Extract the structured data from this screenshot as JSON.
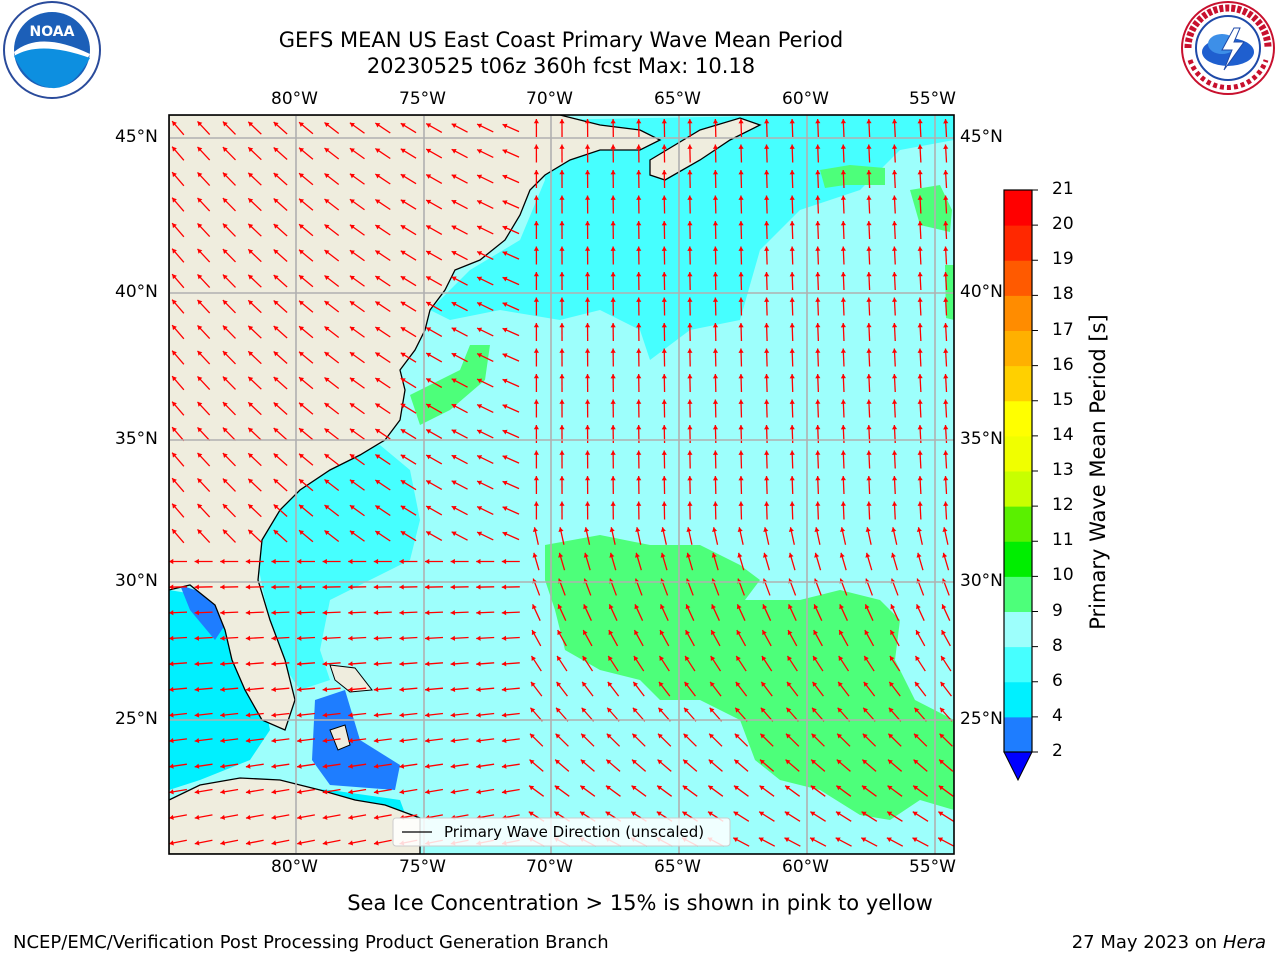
{
  "header": {
    "title_line1": "GEFS MEAN US East Coast Primary Wave Mean Period",
    "title_line2": "20230525 t06z 360h fcst   Max: 10.18"
  },
  "logos": {
    "left": {
      "icon": "noaa-logo-icon",
      "text": "NOAA"
    },
    "right": {
      "icon": "nws-logo-icon",
      "ring_text": "NATIONAL WEATHER SERVICE"
    }
  },
  "map": {
    "lon_labels": [
      "80°W",
      "75°W",
      "70°W",
      "65°W",
      "60°W",
      "55°W"
    ],
    "lat_labels": [
      "45°N",
      "40°N",
      "35°N",
      "30°N",
      "25°N"
    ],
    "legend_label": "Primary Wave Direction (unscaled)",
    "land_color": "#efedde",
    "arrow_color": "#ff0000",
    "gridline_color": "#b0b0b0"
  },
  "colorbar": {
    "title": "Primary Wave Mean Period [s]",
    "levels": [
      "2",
      "4",
      "6",
      "8",
      "9",
      "10",
      "11",
      "12",
      "13",
      "14",
      "15",
      "16",
      "17",
      "18",
      "19",
      "20",
      "21"
    ],
    "colors": [
      "#0000ff",
      "#1e7dff",
      "#00f0ff",
      "#46ffff",
      "#9dfffc",
      "#4dff7a",
      "#00ee00",
      "#5af000",
      "#c8ff00",
      "#f0ff00",
      "#ffff00",
      "#ffd000",
      "#ffb000",
      "#ff8c00",
      "#ff5a00",
      "#ff2800",
      "#ff0000"
    ],
    "extend_color": "#0000ff"
  },
  "footer": {
    "sea_ice_note": "Sea Ice Concentration > 15% is shown in pink to yellow",
    "left": "NCEP/EMC/Verification Post Processing Product Generation Branch",
    "right_date": "27 May 2023 on",
    "right_host": "Hera"
  }
}
